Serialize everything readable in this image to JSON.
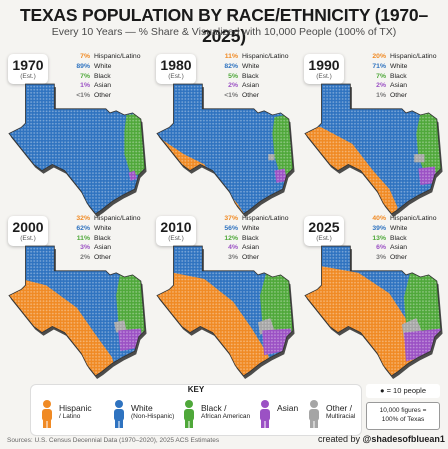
{
  "title": "TEXAS POPULATION BY RACE/ETHNICITY (1970–2025)",
  "subtitle": "Every 10 Years — % Share & Visualized with 10,000 People (100% of TX)",
  "colors": {
    "hispanic": "#f08a24",
    "white": "#2f73c0",
    "black": "#4fa83a",
    "asian": "#9b51c4",
    "other": "#a5a5a5"
  },
  "panels": [
    {
      "year": "1970",
      "est": "(Est.)",
      "rows": [
        {
          "pct": "7%",
          "label": "Hispanic/Latino",
          "group": "hispanic"
        },
        {
          "pct": "89%",
          "label": "White",
          "group": "white"
        },
        {
          "pct": "7%",
          "label": "Black",
          "group": "black"
        },
        {
          "pct": "1%",
          "label": "Asian",
          "group": "asian"
        },
        {
          "pct": "<1%",
          "label": "Other",
          "group": "other"
        }
      ]
    },
    {
      "year": "1980",
      "est": "(Est.)",
      "rows": [
        {
          "pct": "11%",
          "label": "Hispanic/Latino",
          "group": "hispanic"
        },
        {
          "pct": "82%",
          "label": "White",
          "group": "white"
        },
        {
          "pct": "5%",
          "label": "Black",
          "group": "black"
        },
        {
          "pct": "2%",
          "label": "Asian",
          "group": "asian"
        },
        {
          "pct": "<1%",
          "label": "Other",
          "group": "other"
        }
      ]
    },
    {
      "year": "1990",
      "est": "(Est.)",
      "rows": [
        {
          "pct": "20%",
          "label": "Hispanic/Latino",
          "group": "hispanic"
        },
        {
          "pct": "71%",
          "label": "White",
          "group": "white"
        },
        {
          "pct": "7%",
          "label": "Black",
          "group": "black"
        },
        {
          "pct": "2%",
          "label": "Asian",
          "group": "asian"
        },
        {
          "pct": "1%",
          "label": "Other",
          "group": "other"
        }
      ]
    },
    {
      "year": "2000",
      "est": "(Est.)",
      "rows": [
        {
          "pct": "32%",
          "label": "Hispanic/Latino",
          "group": "hispanic"
        },
        {
          "pct": "62%",
          "label": "White",
          "group": "white"
        },
        {
          "pct": "11%",
          "label": "Black",
          "group": "black"
        },
        {
          "pct": "3%",
          "label": "Asian",
          "group": "asian"
        },
        {
          "pct": "2%",
          "label": "Other",
          "group": "other"
        }
      ]
    },
    {
      "year": "2010",
      "est": "(Est.)",
      "rows": [
        {
          "pct": "37%",
          "label": "Hispanic/Latino",
          "group": "hispanic"
        },
        {
          "pct": "56%",
          "label": "White",
          "group": "white"
        },
        {
          "pct": "12%",
          "label": "Black",
          "group": "black"
        },
        {
          "pct": "4%",
          "label": "Asian",
          "group": "asian"
        },
        {
          "pct": "3%",
          "label": "Other",
          "group": "other"
        }
      ]
    },
    {
      "year": "2025",
      "est": "(Est.)",
      "rows": [
        {
          "pct": "40%",
          "label": "Hispanic/Latino",
          "group": "hispanic"
        },
        {
          "pct": "39%",
          "label": "White",
          "group": "white"
        },
        {
          "pct": "13%",
          "label": "Black",
          "group": "black"
        },
        {
          "pct": "6%",
          "label": "Asian",
          "group": "asian"
        },
        {
          "pct": "3%",
          "label": "Other",
          "group": "other"
        }
      ]
    }
  ],
  "key": {
    "title": "KEY",
    "items": [
      {
        "label": "Hispanic",
        "sub": "/ Latino",
        "group": "hispanic",
        "icon": "person-icon"
      },
      {
        "label": "White",
        "sub": "(Non-Hispanic)",
        "group": "white",
        "icon": "person-icon"
      },
      {
        "label": "Black /",
        "sub": "African American",
        "group": "black",
        "icon": "person-icon"
      },
      {
        "label": "Asian",
        "sub": "",
        "group": "asian",
        "icon": "person-icon"
      },
      {
        "label": "Other /",
        "sub": "Multiracial",
        "group": "other",
        "icon": "person-icon"
      }
    ]
  },
  "scale_note": "= 10 people",
  "figures_note_1": "10,000 figures =",
  "figures_note_2": "100% of Texas",
  "source": "Sources: U.S. Census Decennial Data (1970–2020), 2025 ACS Estimates",
  "credit_prefix": "created by",
  "credit_handle": "@shadesofbluean1"
}
